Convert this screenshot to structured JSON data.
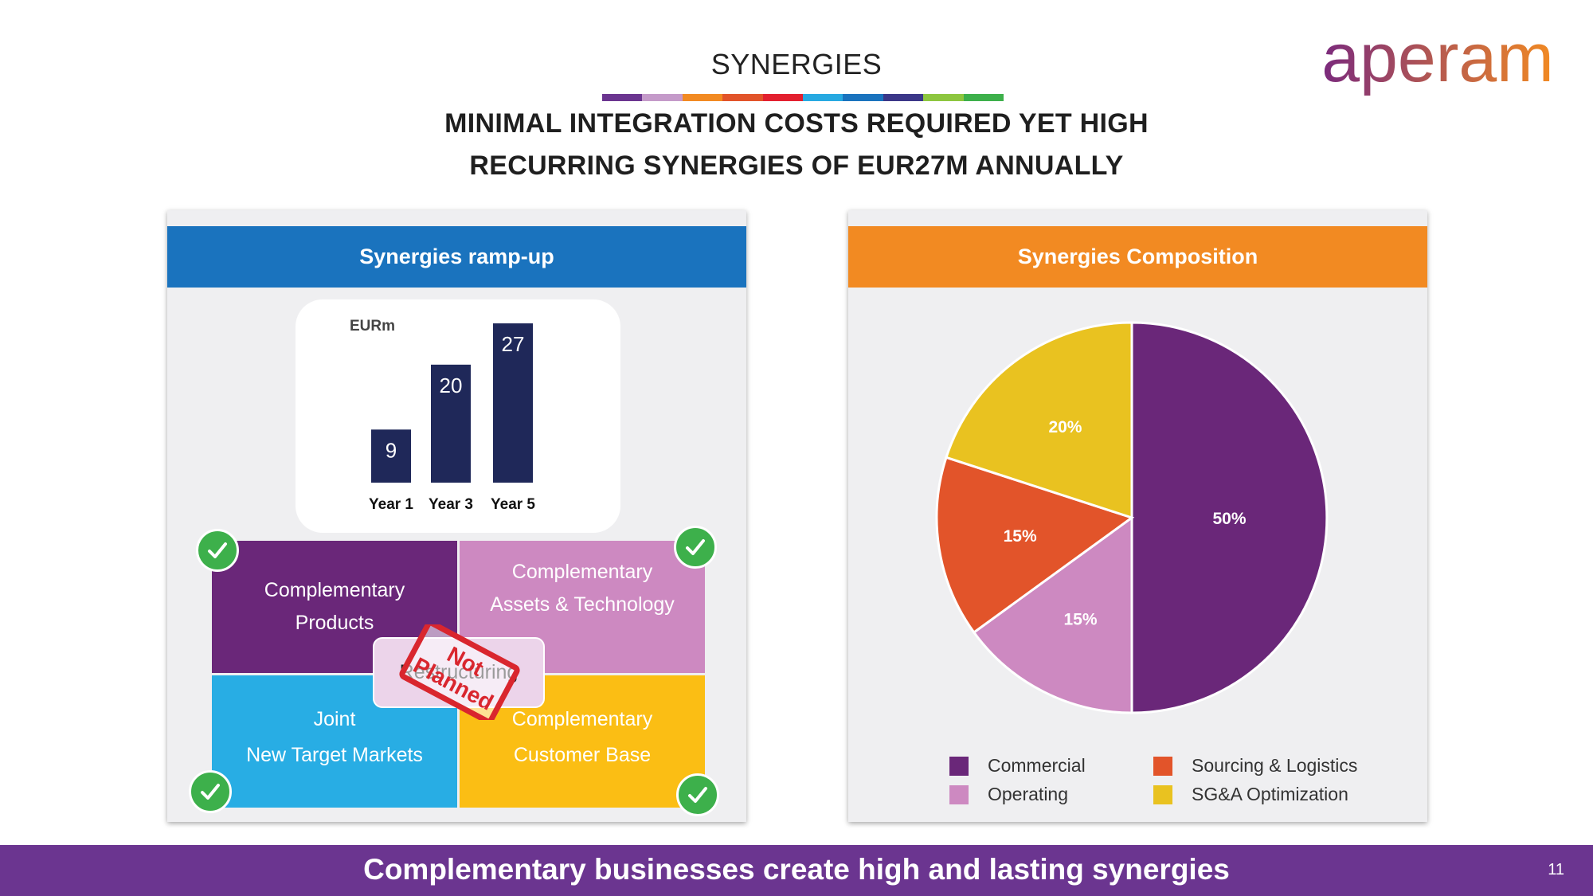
{
  "header": {
    "title": "SYNERGIES",
    "subtitle_line1": "MINIMAL INTEGRATION COSTS REQUIRED YET HIGH",
    "subtitle_line2": "RECURRING SYNERGIES OF EUR27M ANNUALLY",
    "strip_colors": [
      "#6b3590",
      "#c49ac9",
      "#f28a22",
      "#e2542a",
      "#e3202f",
      "#27a9e1",
      "#1a73be",
      "#3b3788",
      "#8dc63f",
      "#3db04b"
    ]
  },
  "logo": {
    "text": "aperam",
    "color_start": "#7a2a7d",
    "color_end": "#f28a22"
  },
  "left_panel": {
    "title": "Synergies ramp-up",
    "header_color": "#1a73be",
    "quadrants": {
      "products": [
        "Complementary",
        "Products"
      ],
      "assets": [
        "Complementary",
        "Assets & Technology"
      ],
      "markets": [
        "Joint",
        "New Target Markets"
      ],
      "customer": [
        "Complementary",
        "Customer Base"
      ]
    },
    "restructuring_label": "Restructuring",
    "stamp_text": [
      "Not",
      "Planned"
    ],
    "check_icon": "checkmark-circle-icon"
  },
  "right_panel": {
    "title": "Synergies Composition",
    "header_color": "#f28a22"
  },
  "chart_data": [
    {
      "type": "bar",
      "unit_label": "EURm",
      "categories": [
        "Year 1",
        "Year 3",
        "Year 5"
      ],
      "values": [
        9,
        20,
        27
      ],
      "data_labels": [
        "9",
        "20",
        "27"
      ],
      "bar_color": "#1f2859",
      "ylim": [
        0,
        27
      ]
    },
    {
      "type": "pie",
      "slices": [
        {
          "name": "Commercial",
          "value": 50,
          "label": "50%",
          "color": "#6a2779"
        },
        {
          "name": "Operating",
          "value": 15,
          "label": "15%",
          "color": "#cd89c1"
        },
        {
          "name": "Sourcing & Logistics",
          "value": 15,
          "label": "15%",
          "color": "#e2542a"
        },
        {
          "name": "SG&A Optimization",
          "value": 20,
          "label": "20%",
          "color": "#e9c220"
        }
      ]
    }
  ],
  "footer": {
    "text": "Complementary businesses create high and lasting synergies",
    "page_number": "11",
    "background": "#6b3590"
  }
}
